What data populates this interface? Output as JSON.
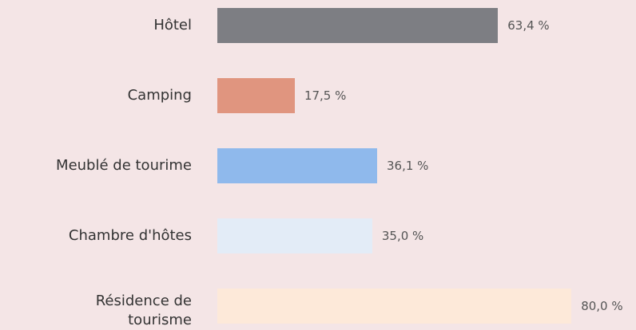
{
  "chart_data": {
    "type": "bar",
    "orientation": "horizontal",
    "categories": [
      "Hôtel",
      "Camping",
      "Meublé de tourime",
      "Chambre d'hôtes",
      "Résidence de tourisme"
    ],
    "values": [
      63.4,
      17.5,
      36.1,
      35.0,
      80.0
    ],
    "value_labels": [
      "63,4 %",
      "17,5 %",
      "36,1 %",
      "35,0 %",
      "80,0 %"
    ],
    "colors": [
      "#7d7e83",
      "#e0957f",
      "#8fb9ec",
      "#e3ecf7",
      "#fde9d9"
    ]
  }
}
